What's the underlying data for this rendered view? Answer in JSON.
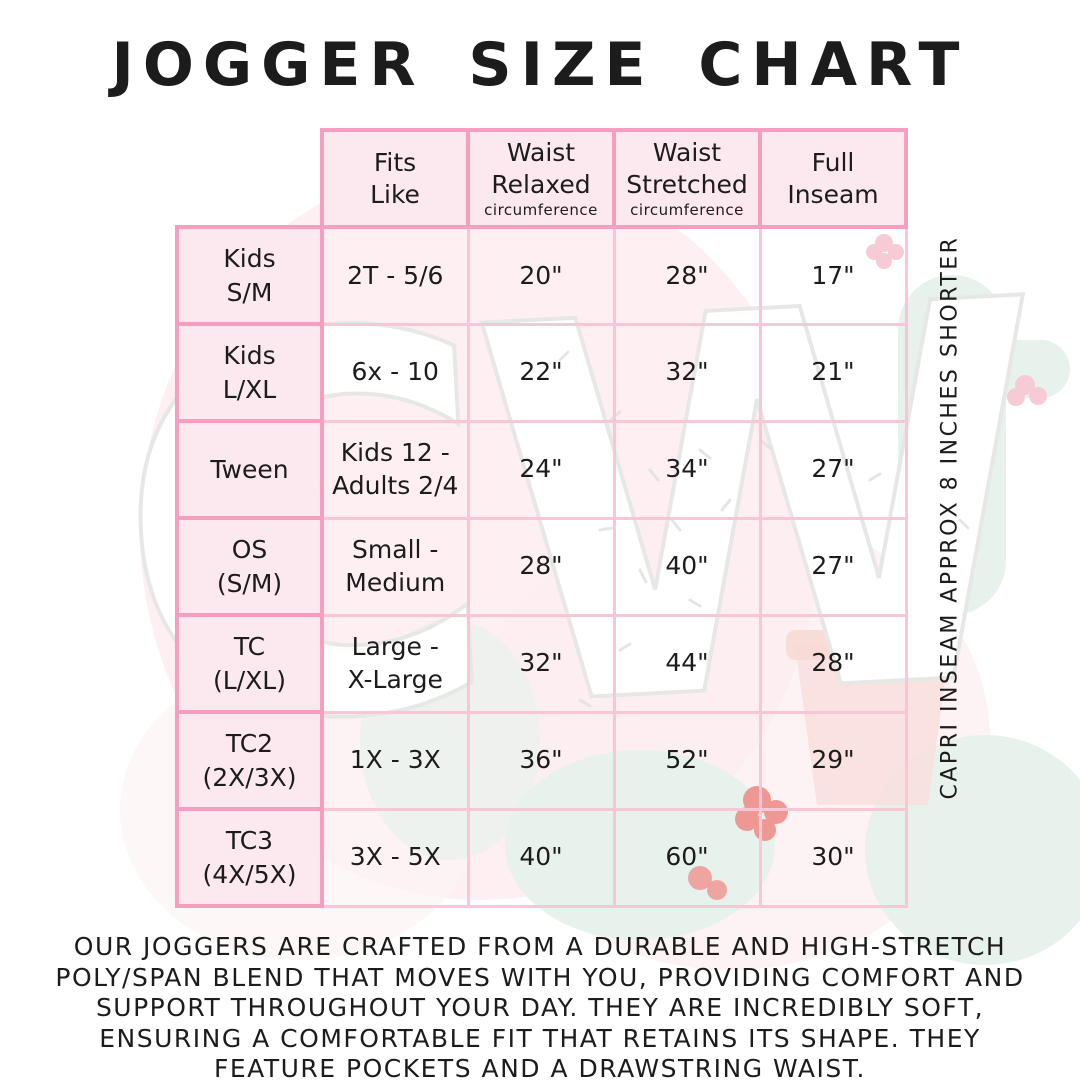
{
  "title": "JOGGER SIZE CHART",
  "table": {
    "columns": [
      {
        "label": "Fits\nLike",
        "sub": ""
      },
      {
        "label": "Waist\nRelaxed",
        "sub": "circumference"
      },
      {
        "label": "Waist\nStretched",
        "sub": "circumference"
      },
      {
        "label": "Full\nInseam",
        "sub": ""
      }
    ],
    "rows": [
      {
        "label": "Kids\nS/M",
        "fits": "2T - 5/6",
        "relaxed": "20\"",
        "stretched": "28\"",
        "inseam": "17\""
      },
      {
        "label": "Kids\nL/XL",
        "fits": "6x - 10",
        "relaxed": "22\"",
        "stretched": "32\"",
        "inseam": "21\""
      },
      {
        "label": "Tween",
        "fits": "Kids 12 -\nAdults 2/4",
        "relaxed": "24\"",
        "stretched": "34\"",
        "inseam": "27\""
      },
      {
        "label": "OS\n(S/M)",
        "fits": "Small -\nMedium",
        "relaxed": "28\"",
        "stretched": "40\"",
        "inseam": "27\""
      },
      {
        "label": "TC\n(L/XL)",
        "fits": "Large -\nX-Large",
        "relaxed": "32\"",
        "stretched": "44\"",
        "inseam": "28\""
      },
      {
        "label": "TC2\n(2X/3X)",
        "fits": "1X - 3X",
        "relaxed": "36\"",
        "stretched": "52\"",
        "inseam": "29\""
      },
      {
        "label": "TC3\n(4X/5X)",
        "fits": "3X - 5X",
        "relaxed": "40\"",
        "stretched": "60\"",
        "inseam": "30\""
      }
    ]
  },
  "side_note": "CAPRI INSEAM APPROX 8 INCHES SHORTER",
  "description": "OUR JOGGERS ARE CRAFTED FROM A DURABLE AND HIGH-STRETCH POLY/SPAN BLEND THAT MOVES WITH YOU, PROVIDING COMFORT AND SUPPORT THROUGHOUT YOUR DAY. THEY ARE INCREDIBLY SOFT, ENSURING A COMFORTABLE FIT THAT RETAINS ITS SHAPE. THEY FEATURE POCKETS AND A DRAWSTRING WAIST.",
  "watermark": {
    "monogram": "CW"
  },
  "colors": {
    "strong_pink_border": "#f79ec0",
    "light_pink_border": "#f9c6d7",
    "pink_cell_fill": "#fce8ef",
    "text": "#1c1c1c",
    "soft_pink_wash": "#fce6ea",
    "mint_green": "#d9eae1",
    "coral_flower": "#e4554c",
    "salmon_pot": "#f5cbc4"
  }
}
